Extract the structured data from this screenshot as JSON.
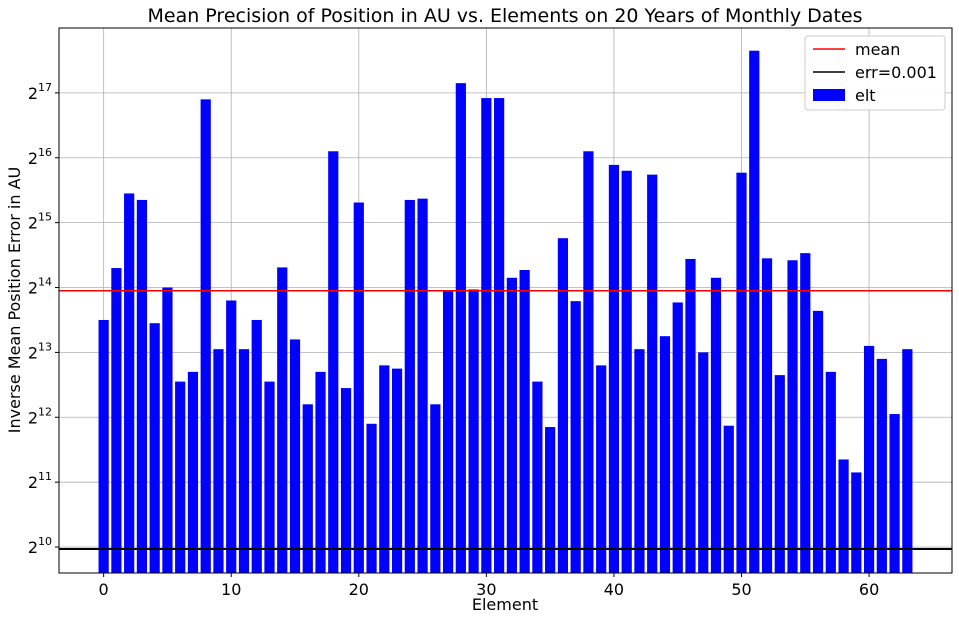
{
  "colors": {
    "bar": "#0000ff",
    "mean_line": "#ff0000",
    "err_line": "#000000",
    "grid": "#b0b0b0"
  },
  "chart_data": {
    "type": "bar",
    "title": "Mean Precision of Position in AU vs. Elements on 20 Years of Monthly Dates",
    "xlabel": "Element",
    "ylabel": "Inverse Mean Position Error in AU",
    "y_scale": "log2",
    "xlim": [
      -3.5,
      66.5
    ],
    "ylim_log2": [
      9.6,
      18.0
    ],
    "x_ticks": [
      {
        "value": 0,
        "label": "0"
      },
      {
        "value": 10,
        "label": "10"
      },
      {
        "value": 20,
        "label": "20"
      },
      {
        "value": 30,
        "label": "30"
      },
      {
        "value": 40,
        "label": "40"
      },
      {
        "value": 50,
        "label": "50"
      },
      {
        "value": 60,
        "label": "60"
      }
    ],
    "y_ticks": [
      {
        "exp": 10,
        "base": "2",
        "sup": "10"
      },
      {
        "exp": 11,
        "base": "2",
        "sup": "11"
      },
      {
        "exp": 12,
        "base": "2",
        "sup": "12"
      },
      {
        "exp": 13,
        "base": "2",
        "sup": "13"
      },
      {
        "exp": 14,
        "base": "2",
        "sup": "14"
      },
      {
        "exp": 15,
        "base": "2",
        "sup": "15"
      },
      {
        "exp": 16,
        "base": "2",
        "sup": "16"
      },
      {
        "exp": 17,
        "base": "2",
        "sup": "17"
      }
    ],
    "grid": true,
    "legend_position": "top-right",
    "legend": [
      {
        "label": "mean",
        "kind": "line",
        "color": "#ff0000"
      },
      {
        "label": "err=0.001",
        "kind": "line",
        "color": "#000000"
      },
      {
        "label": "elt",
        "kind": "patch",
        "color": "#0000ff"
      }
    ],
    "mean_log2": 13.95,
    "err_log2": 9.97,
    "series": [
      {
        "name": "elt",
        "x": [
          0,
          1,
          2,
          3,
          4,
          5,
          6,
          7,
          8,
          9,
          10,
          11,
          12,
          13,
          14,
          15,
          16,
          17,
          18,
          19,
          20,
          21,
          22,
          23,
          24,
          25,
          26,
          27,
          28,
          29,
          30,
          31,
          32,
          33,
          34,
          35,
          36,
          37,
          38,
          39,
          40,
          41,
          42,
          43,
          44,
          45,
          46,
          47,
          48,
          49,
          50,
          51,
          52,
          53,
          54,
          55,
          56,
          57,
          58,
          59,
          60,
          61,
          62,
          63
        ],
        "values_log2": [
          13.5,
          14.3,
          15.45,
          15.35,
          13.45,
          14.0,
          12.55,
          12.7,
          16.9,
          13.05,
          13.8,
          13.05,
          13.5,
          12.55,
          14.31,
          13.2,
          12.2,
          12.7,
          16.1,
          12.45,
          15.31,
          11.9,
          12.8,
          12.75,
          15.35,
          15.37,
          12.2,
          13.95,
          17.15,
          13.97,
          16.92,
          16.92,
          14.15,
          14.27,
          12.55,
          11.85,
          14.76,
          13.79,
          16.1,
          12.8,
          15.89,
          15.8,
          13.05,
          15.74,
          13.25,
          13.77,
          14.44,
          13.0,
          14.15,
          11.87,
          15.77,
          17.65,
          14.45,
          12.65,
          14.42,
          14.53,
          13.64,
          12.7,
          11.35,
          11.15,
          13.1,
          12.9,
          12.05,
          13.05
        ]
      }
    ]
  }
}
